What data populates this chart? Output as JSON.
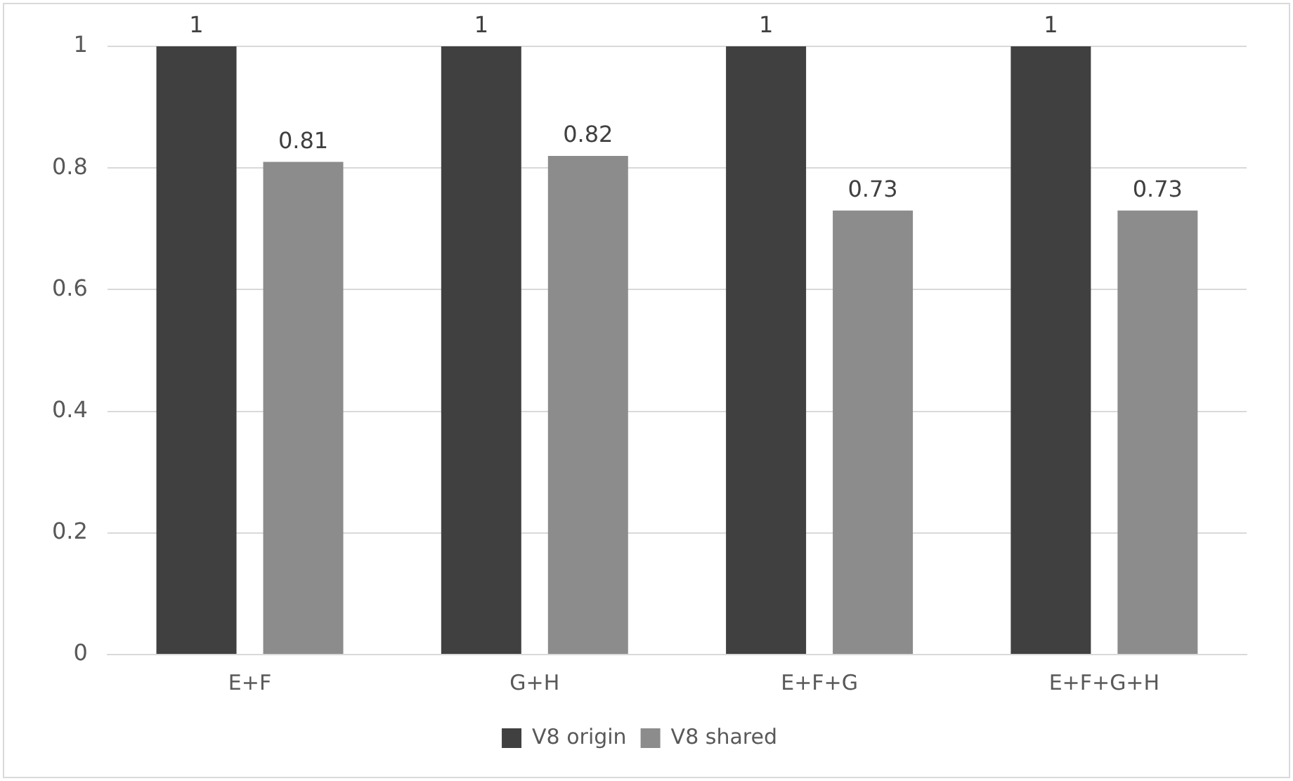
{
  "chart_data": {
    "type": "bar",
    "categories": [
      "E+F",
      "G+H",
      "E+F+G",
      "E+F+G+H"
    ],
    "series": [
      {
        "name": "V8 origin",
        "color": "#404040",
        "values": [
          1,
          1,
          1,
          1
        ]
      },
      {
        "name": "V8 shared",
        "color": "#8c8c8c",
        "values": [
          0.81,
          0.82,
          0.73,
          0.73
        ]
      }
    ],
    "ylim": [
      0,
      1
    ],
    "yticks": [
      0,
      0.2,
      0.4,
      0.6,
      0.8,
      1
    ],
    "grid": "y",
    "legend": "bottom",
    "data_labels": true
  }
}
